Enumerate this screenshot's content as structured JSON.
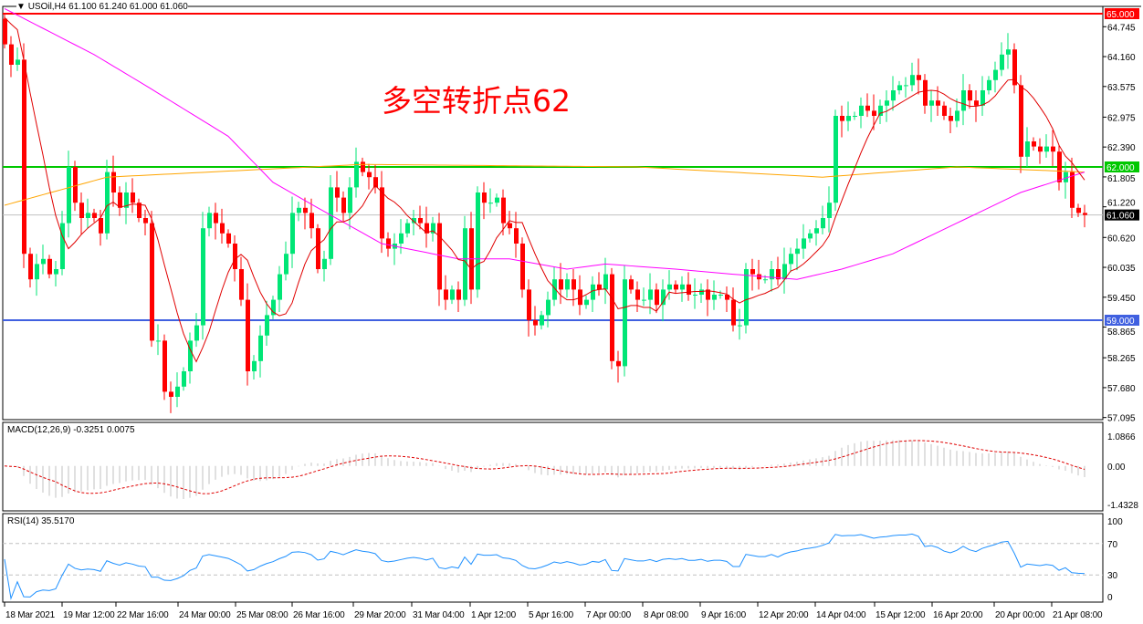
{
  "header": {
    "symbol_line": "USOil,H4  61.100 61.240 61.000 61.060"
  },
  "annotation": "多空转折点62",
  "colors": {
    "bull": "#00e676",
    "bear": "#ff0000",
    "ma_fast": "#e00000",
    "ma_mid": "#ff00ff",
    "ma_slow": "#ffa500",
    "level_65": "#ff0000",
    "level_62": "#00c800",
    "level_59": "#4060e0",
    "last": "#000000"
  },
  "chart_data": {
    "type": "candlestick",
    "symbol": "USOil",
    "timeframe": "H4",
    "ylim": [
      57.095,
      65.0
    ],
    "y_ticks": [
      "64.745",
      "64.160",
      "63.575",
      "62.975",
      "62.390",
      "61.805",
      "61.220",
      "60.620",
      "60.035",
      "59.450",
      "58.865",
      "58.265",
      "57.680",
      "57.095"
    ],
    "levels": [
      {
        "value": 65.0,
        "label": "65.000",
        "color": "#ff0000"
      },
      {
        "value": 62.0,
        "label": "62.000",
        "color": "#00c800"
      },
      {
        "value": 59.0,
        "label": "59.000",
        "color": "#4060e0"
      },
      {
        "value": 61.06,
        "label": "61.060",
        "color": "#000000"
      }
    ],
    "x_ticks": [
      "18 Mar 2021",
      "19 Mar 12:00",
      "22 Mar 16:00",
      "24 Mar 00:00",
      "25 Mar 08:00",
      "26 Mar 16:00",
      "29 Mar 20:00",
      "31 Mar 04:00",
      "1 Apr 12:00",
      "5 Apr 16:00",
      "7 Apr 00:00",
      "8 Apr 08:00",
      "9 Apr 16:00",
      "12 Apr 20:00",
      "14 Apr 04:00",
      "15 Apr 12:00",
      "16 Apr 20:00",
      "20 Apr 00:00",
      "21 Apr 08:00"
    ],
    "closes": [
      64.4,
      64.0,
      64.1,
      60.3,
      59.8,
      60.1,
      60.2,
      59.9,
      60.0,
      60.9,
      62.0,
      61.3,
      61.0,
      61.1,
      61.0,
      60.7,
      61.9,
      61.5,
      61.2,
      61.5,
      61.3,
      61.0,
      60.9,
      58.6,
      58.6,
      57.6,
      57.5,
      57.7,
      58.0,
      58.6,
      58.9,
      60.8,
      61.1,
      60.9,
      60.7,
      60.5,
      60.0,
      59.4,
      58.0,
      58.2,
      58.7,
      59.1,
      59.4,
      59.9,
      60.3,
      61.1,
      61.2,
      61.1,
      60.8,
      60.0,
      60.2,
      61.6,
      61.4,
      61.1,
      61.6,
      62.1,
      61.9,
      61.8,
      61.6,
      60.6,
      60.4,
      60.5,
      60.7,
      60.9,
      61.0,
      60.9,
      60.7,
      60.9,
      59.6,
      59.4,
      59.6,
      59.4,
      60.8,
      59.6,
      61.5,
      61.3,
      61.3,
      61.4,
      60.9,
      60.8,
      60.5,
      59.6,
      59.0,
      58.9,
      59.1,
      59.4,
      59.8,
      59.6,
      59.8,
      59.6,
      59.3,
      59.4,
      59.7,
      59.6,
      59.9,
      58.2,
      58.1,
      59.8,
      59.6,
      59.4,
      59.4,
      59.6,
      59.3,
      59.6,
      59.7,
      59.6,
      59.7,
      59.5,
      59.5,
      59.6,
      59.4,
      59.5,
      59.5,
      59.4,
      58.9,
      58.9,
      60.0,
      59.9,
      59.8,
      59.8,
      60.0,
      59.8,
      60.1,
      60.3,
      60.4,
      60.6,
      60.7,
      60.8,
      61.0,
      61.3,
      63.0,
      62.9,
      63.0,
      63.0,
      63.2,
      63.1,
      63.0,
      63.2,
      63.3,
      63.5,
      63.6,
      63.6,
      63.8,
      63.7,
      63.2,
      63.3,
      63.2,
      63.0,
      62.9,
      63.1,
      63.5,
      63.3,
      63.2,
      63.5,
      63.7,
      63.9,
      64.2,
      64.3,
      63.6,
      62.2,
      62.5,
      62.4,
      62.3,
      62.4,
      62.3,
      61.7,
      61.9,
      61.2,
      61.1,
      61.06
    ],
    "ma_mid_anchors": [
      [
        0,
        65.1
      ],
      [
        14,
        64.2
      ],
      [
        22,
        63.6
      ],
      [
        35,
        62.6
      ],
      [
        42,
        61.7
      ],
      [
        49,
        61.2
      ],
      [
        59,
        60.5
      ],
      [
        71,
        60.2
      ],
      [
        79,
        60.2
      ],
      [
        88,
        60.0
      ],
      [
        94,
        60.1
      ],
      [
        105,
        60.0
      ],
      [
        114,
        59.9
      ],
      [
        124,
        59.8
      ],
      [
        131,
        60.0
      ],
      [
        139,
        60.3
      ],
      [
        149,
        60.9
      ],
      [
        159,
        61.5
      ],
      [
        169,
        61.9
      ]
    ],
    "ma_slow_anchors": [
      [
        0,
        61.25
      ],
      [
        16,
        61.8
      ],
      [
        56,
        62.05
      ],
      [
        99,
        62.0
      ],
      [
        128,
        61.8
      ],
      [
        149,
        62.0
      ],
      [
        169,
        61.9
      ]
    ],
    "macd": {
      "label": "MACD(12,26,9) -0.3251 0.0075",
      "ylim": [
        -1.4328,
        1.0866
      ],
      "ticks": [
        "1.0866",
        "0.00",
        "-1.4328"
      ]
    },
    "rsi": {
      "label": "RSI(14) 35.5170",
      "ticks": [
        "100",
        "70",
        "30",
        "0"
      ]
    }
  }
}
